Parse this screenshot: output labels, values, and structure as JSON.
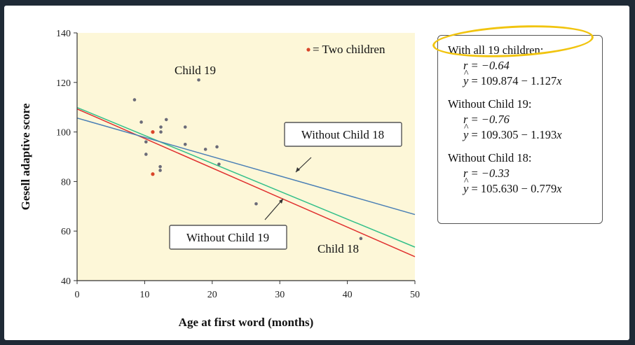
{
  "chart_data": {
    "type": "scatter",
    "xlabel": "Age at first word (months)",
    "ylabel": "Gesell adaptive score",
    "xlim": [
      0,
      50
    ],
    "ylim": [
      40,
      140
    ],
    "xticks": [
      "0",
      "10",
      "20",
      "30",
      "40",
      "50"
    ],
    "yticks": [
      "40",
      "60",
      "80",
      "100",
      "120",
      "140"
    ],
    "grid": false,
    "legend": {
      "placement": "top-right",
      "marker_color": "#d9452a",
      "text": "= Two children"
    },
    "points": [
      {
        "x": 8.5,
        "y": 113,
        "double": false
      },
      {
        "x": 9.5,
        "y": 104,
        "double": false
      },
      {
        "x": 10.2,
        "y": 96,
        "double": false
      },
      {
        "x": 10.2,
        "y": 91,
        "double": false
      },
      {
        "x": 11.2,
        "y": 100,
        "double": true
      },
      {
        "x": 11.2,
        "y": 83,
        "double": true
      },
      {
        "x": 12.4,
        "y": 102,
        "double": false
      },
      {
        "x": 12.4,
        "y": 100,
        "double": false
      },
      {
        "x": 12.3,
        "y": 86,
        "double": false
      },
      {
        "x": 12.3,
        "y": 84.5,
        "double": false
      },
      {
        "x": 13.2,
        "y": 105,
        "double": false
      },
      {
        "x": 16.0,
        "y": 102,
        "double": false
      },
      {
        "x": 16.0,
        "y": 95,
        "double": false
      },
      {
        "x": 19.0,
        "y": 93,
        "double": false
      },
      {
        "x": 20.7,
        "y": 94,
        "double": false
      },
      {
        "x": 21.0,
        "y": 87,
        "double": false
      },
      {
        "x": 26.5,
        "y": 71,
        "double": false
      },
      {
        "x": 18.0,
        "y": 121,
        "double": false
      },
      {
        "x": 42.0,
        "y": 57,
        "double": false
      }
    ],
    "lines": [
      {
        "name": "With all 19 children",
        "intercept": 109.874,
        "slope": -1.127,
        "color": "#34c08a"
      },
      {
        "name": "Without Child 19",
        "intercept": 109.305,
        "slope": -1.193,
        "color": "#e0302f"
      },
      {
        "name": "Without Child 18",
        "intercept": 105.63,
        "slope": -0.779,
        "color": "#4a7fb5"
      }
    ],
    "annotations": {
      "child19": "Child 19",
      "child18": "Child 18",
      "without18": "Without Child 18",
      "without19": "Without Child 19"
    },
    "colors": {
      "plot_bg": "#fdf7d8",
      "point": "#6b6b78",
      "double_point": "#d9452a"
    }
  },
  "stats": [
    {
      "heading": "With all 19 children:",
      "r_label": "r = −0.64",
      "eq_label": " = 109.874 − 1.127",
      "eq_y": "y",
      "eq_x": "x"
    },
    {
      "heading": "Without Child 19:",
      "r_label": "r = −0.76",
      "eq_label": " = 109.305 − 1.193",
      "eq_y": "y",
      "eq_x": "x"
    },
    {
      "heading": "Without Child 18:",
      "r_label": "r = −0.33",
      "eq_label": " = 105.630 − 0.779",
      "eq_y": "y",
      "eq_x": "x"
    }
  ]
}
